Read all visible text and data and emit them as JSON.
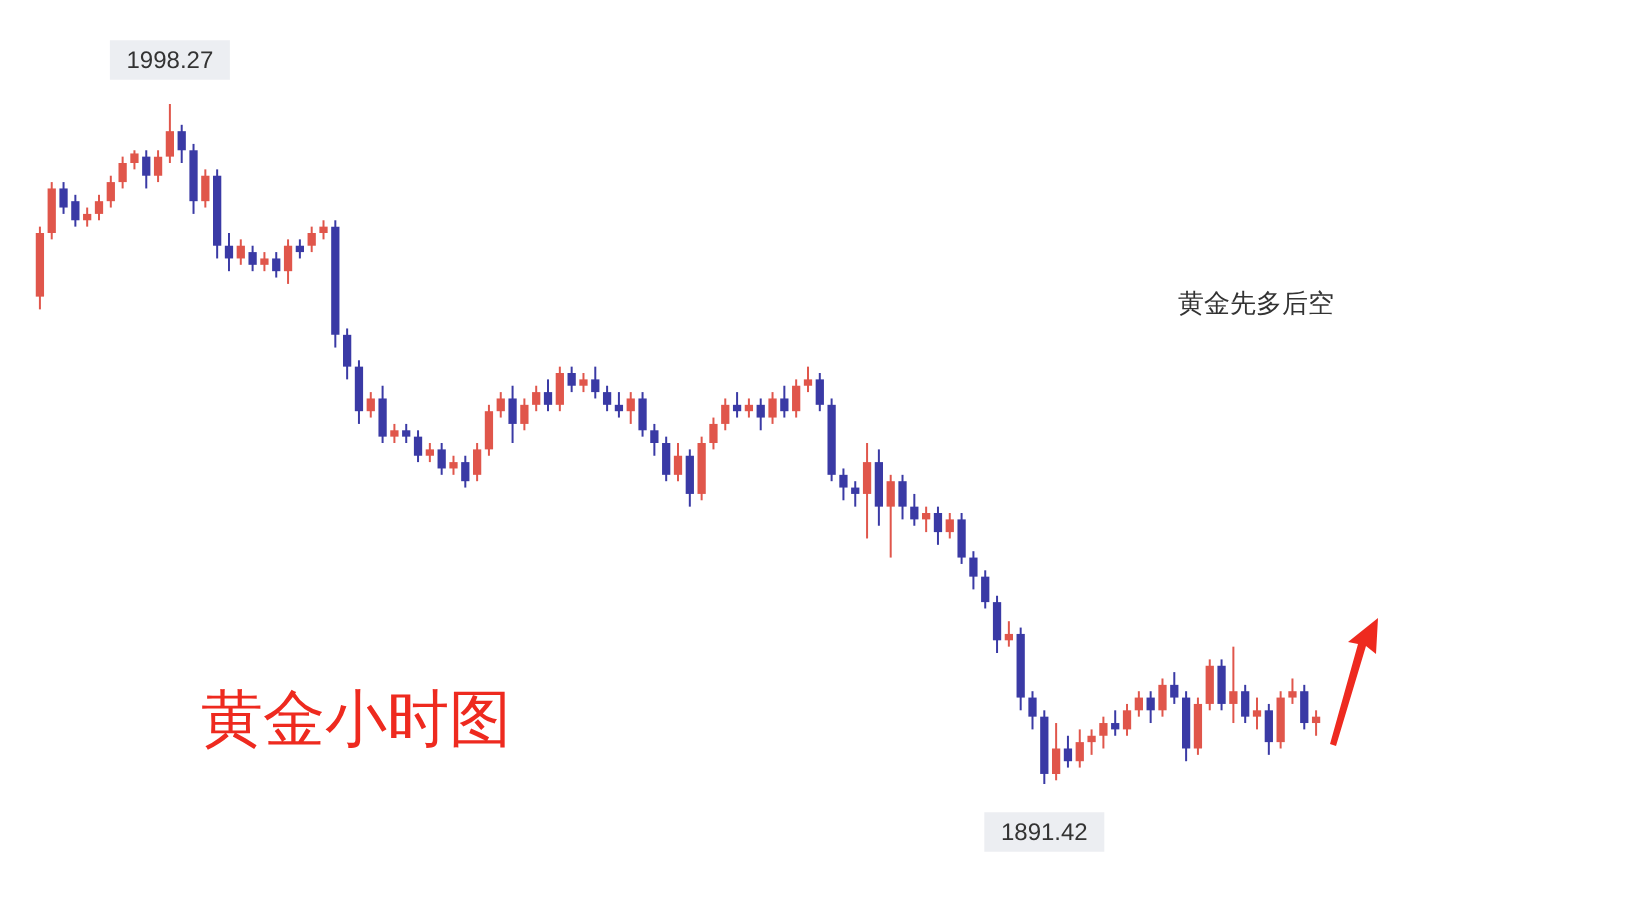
{
  "chart_data": {
    "type": "candlestick",
    "annotations": [
      {
        "text": "1998.27",
        "y": 1998.27
      },
      {
        "text": "1891.42",
        "y": 1891.42
      },
      "黄金先多后空",
      "黄金小时图"
    ],
    "categories": [
      null,
      null,
      null,
      null,
      null,
      null,
      null,
      null,
      null,
      null,
      null,
      null,
      null,
      null,
      null,
      null,
      null,
      null,
      null,
      null,
      null,
      null,
      null,
      null,
      null,
      null,
      null,
      null,
      null,
      null,
      null,
      null,
      null,
      null,
      null,
      null,
      null,
      null,
      null,
      null,
      null,
      null,
      null,
      null,
      null,
      null,
      null,
      null,
      null,
      null,
      null,
      null,
      null,
      null,
      null,
      null,
      null,
      null,
      null,
      null,
      null,
      null,
      null,
      null,
      null,
      null,
      null,
      null,
      null,
      null,
      null,
      null,
      null,
      null,
      null,
      null,
      null,
      null,
      null,
      null,
      null,
      null,
      null,
      null,
      null,
      null,
      null,
      null,
      null,
      null,
      null,
      null,
      null,
      null,
      null,
      null,
      null,
      null,
      null,
      null,
      null,
      null,
      null,
      null,
      null,
      null,
      null,
      null,
      null
    ],
    "ohlc": [
      [
        1968,
        1979,
        1966,
        1978
      ],
      [
        1978,
        1986,
        1977,
        1985
      ],
      [
        1985,
        1986,
        1981,
        1982
      ],
      [
        1983,
        1984,
        1979,
        1980
      ],
      [
        1980,
        1982,
        1979,
        1981
      ],
      [
        1981,
        1984,
        1980,
        1983
      ],
      [
        1983,
        1987,
        1982,
        1986
      ],
      [
        1986,
        1990,
        1985,
        1989
      ],
      [
        1989,
        1991,
        1988,
        1990.5
      ],
      [
        1990,
        1991,
        1985,
        1987
      ],
      [
        1987,
        1991,
        1986,
        1990
      ],
      [
        1990,
        1998.27,
        1989,
        1994
      ],
      [
        1994,
        1995,
        1989,
        1991
      ],
      [
        1991,
        1992,
        1981,
        1983
      ],
      [
        1983,
        1988,
        1982,
        1987
      ],
      [
        1987,
        1988,
        1974,
        1976
      ],
      [
        1976,
        1978,
        1972,
        1974
      ],
      [
        1974,
        1977,
        1973,
        1976
      ],
      [
        1975,
        1976,
        1972,
        1973
      ],
      [
        1973,
        1975,
        1972,
        1974
      ],
      [
        1974,
        1975,
        1971,
        1972
      ],
      [
        1972,
        1977,
        1970,
        1976
      ],
      [
        1976,
        1977,
        1974,
        1975
      ],
      [
        1976,
        1979,
        1975,
        1978
      ],
      [
        1978,
        1980,
        1977,
        1979
      ],
      [
        1979,
        1980,
        1960,
        1962
      ],
      [
        1962,
        1963,
        1955,
        1957
      ],
      [
        1957,
        1958,
        1948,
        1950
      ],
      [
        1950,
        1953,
        1949,
        1952
      ],
      [
        1952,
        1954,
        1945,
        1946
      ],
      [
        1946,
        1948,
        1945,
        1947
      ],
      [
        1947,
        1948,
        1945,
        1946
      ],
      [
        1946,
        1947,
        1942,
        1943
      ],
      [
        1943,
        1945,
        1942,
        1944
      ],
      [
        1944,
        1945,
        1940,
        1941
      ],
      [
        1941,
        1943,
        1940,
        1942
      ],
      [
        1942,
        1943,
        1938,
        1939
      ],
      [
        1940,
        1945,
        1939,
        1944
      ],
      [
        1944,
        1951,
        1943,
        1950
      ],
      [
        1950,
        1953,
        1949,
        1952
      ],
      [
        1952,
        1954,
        1945,
        1948
      ],
      [
        1948,
        1952,
        1947,
        1951
      ],
      [
        1951,
        1954,
        1950,
        1953
      ],
      [
        1953,
        1955,
        1950,
        1951
      ],
      [
        1951,
        1957,
        1950,
        1956
      ],
      [
        1956,
        1957,
        1953,
        1954
      ],
      [
        1954,
        1956,
        1953,
        1955
      ],
      [
        1955,
        1957,
        1952,
        1953
      ],
      [
        1953,
        1954,
        1950,
        1951
      ],
      [
        1951,
        1953,
        1949,
        1950
      ],
      [
        1950,
        1953,
        1948,
        1952
      ],
      [
        1952,
        1953,
        1946,
        1947
      ],
      [
        1947,
        1948,
        1943,
        1945
      ],
      [
        1945,
        1946,
        1939,
        1940
      ],
      [
        1940,
        1945,
        1939,
        1943
      ],
      [
        1943,
        1944,
        1935,
        1937
      ],
      [
        1937,
        1946,
        1936,
        1945
      ],
      [
        1945,
        1949,
        1944,
        1948
      ],
      [
        1948,
        1952,
        1947,
        1951
      ],
      [
        1951,
        1953,
        1949,
        1950
      ],
      [
        1950,
        1952,
        1949,
        1951
      ],
      [
        1951,
        1952,
        1947,
        1949
      ],
      [
        1949,
        1953,
        1948,
        1952
      ],
      [
        1952,
        1954,
        1949,
        1950
      ],
      [
        1950,
        1955,
        1949,
        1954
      ],
      [
        1954,
        1957,
        1953,
        1955
      ],
      [
        1955,
        1956,
        1950,
        1951
      ],
      [
        1951,
        1952,
        1939,
        1940
      ],
      [
        1940,
        1941,
        1936,
        1938
      ],
      [
        1938,
        1939,
        1935,
        1937
      ],
      [
        1937,
        1945,
        1930,
        1942
      ],
      [
        1942,
        1944,
        1932,
        1935
      ],
      [
        1935,
        1940,
        1927,
        1939
      ],
      [
        1939,
        1940,
        1933,
        1935
      ],
      [
        1935,
        1937,
        1932,
        1933
      ],
      [
        1933,
        1935,
        1931,
        1934
      ],
      [
        1934,
        1935,
        1929,
        1931
      ],
      [
        1931,
        1934,
        1930,
        1933
      ],
      [
        1933,
        1934,
        1926,
        1927
      ],
      [
        1927,
        1928,
        1922,
        1924
      ],
      [
        1924,
        1925,
        1919,
        1920
      ],
      [
        1920,
        1921,
        1912,
        1914
      ],
      [
        1914,
        1917,
        1913,
        1915
      ],
      [
        1915,
        1916,
        1903,
        1905
      ],
      [
        1905,
        1906,
        1900,
        1902
      ],
      [
        1902,
        1903,
        1891.42,
        1893
      ],
      [
        1893,
        1901,
        1892,
        1897
      ],
      [
        1897,
        1899,
        1894,
        1895
      ],
      [
        1895,
        1900,
        1894,
        1898
      ],
      [
        1898,
        1900,
        1896,
        1899
      ],
      [
        1899,
        1902,
        1897,
        1901
      ],
      [
        1901,
        1903,
        1899,
        1900
      ],
      [
        1900,
        1904,
        1899,
        1903
      ],
      [
        1903,
        1906,
        1902,
        1905
      ],
      [
        1905,
        1906,
        1901,
        1903
      ],
      [
        1903,
        1908,
        1902,
        1907
      ],
      [
        1907,
        1909,
        1904,
        1905
      ],
      [
        1905,
        1906,
        1895,
        1897
      ],
      [
        1897,
        1905,
        1896,
        1904
      ],
      [
        1904,
        1911,
        1903,
        1910
      ],
      [
        1910,
        1911,
        1903,
        1904
      ],
      [
        1904,
        1913,
        1901,
        1906
      ],
      [
        1906,
        1907,
        1901,
        1902
      ],
      [
        1902,
        1905,
        1900,
        1903
      ],
      [
        1903,
        1904,
        1896,
        1898
      ],
      [
        1898,
        1906,
        1897,
        1905
      ],
      [
        1905,
        1908,
        1904,
        1906
      ],
      [
        1906,
        1907,
        1900,
        1901
      ],
      [
        1901,
        1903,
        1899,
        1902
      ]
    ],
    "colors": [
      "#e0564b",
      "#e0564b",
      "#3a3aa5",
      "#3a3aa5",
      "#e0564b",
      "#e0564b",
      "#e0564b",
      "#e0564b",
      "#e0564b",
      "#3a3aa5",
      "#e0564b",
      "#e0564b",
      "#3a3aa5",
      "#3a3aa5",
      "#e0564b",
      "#3a3aa5",
      "#3a3aa5",
      "#e0564b",
      "#3a3aa5",
      "#e0564b",
      "#3a3aa5",
      "#e0564b",
      "#3a3aa5",
      "#e0564b",
      "#e0564b",
      "#3a3aa5",
      "#3a3aa5",
      "#3a3aa5",
      "#e0564b",
      "#3a3aa5",
      "#e0564b",
      "#3a3aa5",
      "#3a3aa5",
      "#e0564b",
      "#3a3aa5",
      "#e0564b",
      "#3a3aa5",
      "#e0564b",
      "#e0564b",
      "#e0564b",
      "#3a3aa5",
      "#e0564b",
      "#e0564b",
      "#3a3aa5",
      "#e0564b",
      "#3a3aa5",
      "#e0564b",
      "#3a3aa5",
      "#3a3aa5",
      "#3a3aa5",
      "#e0564b",
      "#3a3aa5",
      "#3a3aa5",
      "#3a3aa5",
      "#e0564b",
      "#3a3aa5",
      "#e0564b",
      "#e0564b",
      "#e0564b",
      "#3a3aa5",
      "#e0564b",
      "#3a3aa5",
      "#e0564b",
      "#3a3aa5",
      "#e0564b",
      "#e0564b",
      "#3a3aa5",
      "#3a3aa5",
      "#3a3aa5",
      "#3a3aa5",
      "#e0564b",
      "#3a3aa5",
      "#e0564b",
      "#3a3aa5",
      "#3a3aa5",
      "#e0564b",
      "#3a3aa5",
      "#e0564b",
      "#3a3aa5",
      "#3a3aa5",
      "#3a3aa5",
      "#3a3aa5",
      "#e0564b",
      "#3a3aa5",
      "#3a3aa5",
      "#3a3aa5",
      "#e0564b",
      "#3a3aa5",
      "#e0564b",
      "#e0564b",
      "#e0564b",
      "#3a3aa5",
      "#e0564b",
      "#e0564b",
      "#3a3aa5",
      "#e0564b",
      "#3a3aa5",
      "#3a3aa5",
      "#e0564b",
      "#e0564b",
      "#3a3aa5",
      "#e0564b",
      "#3a3aa5",
      "#e0564b",
      "#3a3aa5",
      "#e0564b",
      "#e0564b",
      "#3a3aa5",
      "#e0564b"
    ]
  }
}
